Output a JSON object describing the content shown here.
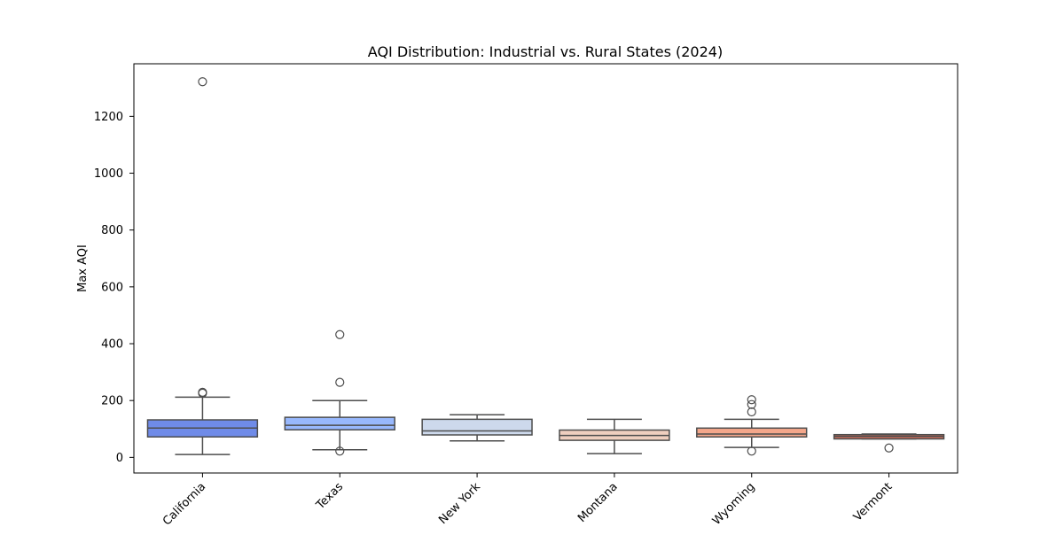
{
  "chart_data": {
    "type": "box",
    "title": "AQI Distribution: Industrial vs. Rural States (2024)",
    "xlabel": "",
    "ylabel": "Max AQI",
    "ylim": [
      -55,
      1385
    ],
    "yticks": [
      0,
      200,
      400,
      600,
      800,
      1000,
      1200
    ],
    "grid": false,
    "categories": [
      "California",
      "Texas",
      "New York",
      "Montana",
      "Wyoming",
      "Vermont"
    ],
    "boxes": [
      {
        "category": "California",
        "whisker_low": 10,
        "q1": 72,
        "median": 103,
        "q3": 132,
        "whisker_high": 212,
        "outliers": [
          226,
          229,
          1322
        ],
        "color": "#6f8be8"
      },
      {
        "category": "Texas",
        "whisker_low": 27,
        "q1": 97,
        "median": 113,
        "q3": 141,
        "whisker_high": 200,
        "outliers": [
          22,
          264,
          432
        ],
        "color": "#98b8fd"
      },
      {
        "category": "New York",
        "whisker_low": 58,
        "q1": 79,
        "median": 93,
        "q3": 134,
        "whisker_high": 150,
        "outliers": [],
        "color": "#cdd9ec"
      },
      {
        "category": "Montana",
        "whisker_low": 13,
        "q1": 60,
        "median": 77,
        "q3": 96,
        "whisker_high": 134,
        "outliers": [],
        "color": "#efcfbf"
      },
      {
        "category": "Wyoming",
        "whisker_low": 35,
        "q1": 72,
        "median": 82,
        "q3": 103,
        "whisker_high": 134,
        "outliers": [
          22,
          160,
          186,
          203
        ],
        "color": "#f4a78b"
      },
      {
        "category": "Vermont",
        "whisker_low": 65,
        "q1": 65,
        "median": 74,
        "q3": 80,
        "whisker_high": 82,
        "outliers": [
          33
        ],
        "color": "#cf6f5c"
      }
    ]
  }
}
